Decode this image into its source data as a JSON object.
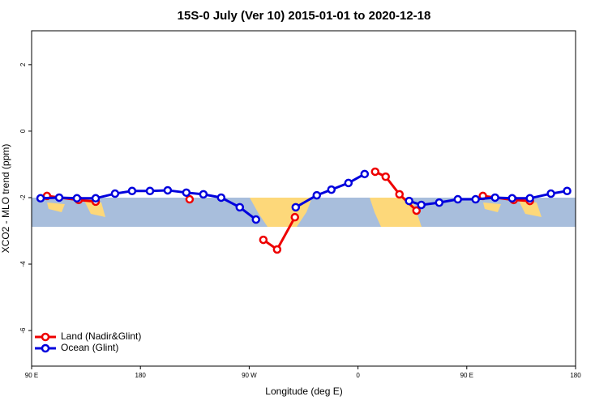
{
  "chart_data": {
    "type": "line",
    "title": "15S-0 July (Ver 10)   2015-01-01 to 2020-12-18",
    "x_label": "Longitude (deg E)",
    "y_label": "XCO2 - MLO trend (ppm)",
    "xlim": [
      90,
      540
    ],
    "xticks": [
      {
        "value": 90,
        "label": "90 E"
      },
      {
        "value": 180,
        "label": "180"
      },
      {
        "value": 270,
        "label": "90 W"
      },
      {
        "value": 360,
        "label": "0"
      },
      {
        "value": 450,
        "label": "90 E"
      },
      {
        "value": 540,
        "label": "180"
      }
    ],
    "ylim": [
      -7.07,
      3.02
    ],
    "yticks": [
      -6,
      -4,
      -2,
      0,
      2
    ],
    "legend": "bottom-left",
    "series": [
      {
        "name": "Land (Nadir&Glint)",
        "color": "#ee0000",
        "x": [
          102.7,
          128.9,
          143.0,
          null,
          220.7,
          null,
          281.7,
          293.1,
          307.8,
          null,
          374.2,
          382.9,
          394.3,
          408.4,
          null,
          463.3,
          488.8,
          502.2
        ],
        "values": [
          -1.95,
          -2.07,
          -2.12,
          null,
          -2.05,
          null,
          -3.27,
          -3.56,
          -2.59,
          null,
          -1.22,
          -1.37,
          -1.9,
          -2.39,
          null,
          -1.95,
          -2.07,
          -2.1
        ]
      },
      {
        "name": "Ocean (Glint)",
        "color": "#0000dd",
        "x": [
          97.4,
          112.8,
          127.5,
          143.0,
          159.0,
          173.1,
          187.9,
          202.6,
          218.0,
          232.1,
          246.8,
          262.2,
          275.6,
          null,
          308.5,
          325.9,
          338.0,
          352.1,
          365.5,
          null,
          402.3,
          412.4,
          427.2,
          442.6,
          457.3,
          473.4,
          487.5,
          502.2,
          519.6,
          533.0
        ],
        "values": [
          -2.02,
          -2.0,
          -2.02,
          -2.02,
          -1.88,
          -1.8,
          -1.8,
          -1.78,
          -1.85,
          -1.9,
          -2.0,
          -2.29,
          -2.66,
          null,
          -2.29,
          -1.93,
          -1.76,
          -1.56,
          -1.29,
          null,
          -2.1,
          -2.22,
          -2.15,
          -2.05,
          -2.05,
          -2.0,
          -2.02,
          -2.02,
          -1.88,
          -1.8
        ]
      }
    ]
  }
}
